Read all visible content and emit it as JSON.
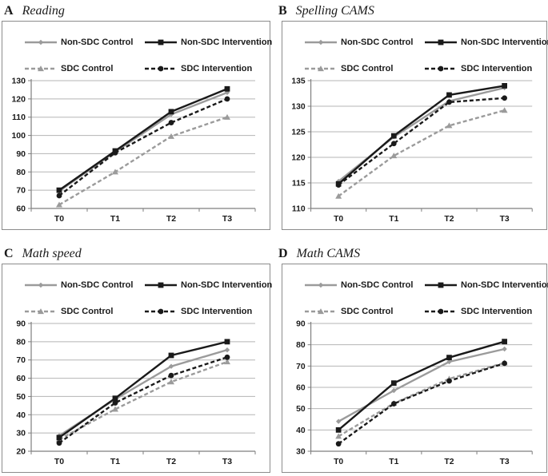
{
  "figure_theme": {
    "background": "#ffffff",
    "panel_border_color": "#8c8c8c",
    "gridline_color": "#b5b5b5",
    "axis_color": "#7f7f7f",
    "text_color": "#1a1a1a",
    "control_gray": "#9b9b9b",
    "intervention_black": "#1a1a1a"
  },
  "chart_data": [
    {
      "type": "line",
      "panel_label": "A",
      "title": "Reading",
      "categories": [
        "T0",
        "T1",
        "T2",
        "T3"
      ],
      "ylim": [
        60,
        130
      ],
      "yticks": [
        60,
        70,
        80,
        90,
        100,
        110,
        120,
        130
      ],
      "legend_position": "top",
      "grid": true,
      "series": [
        {
          "name": "Non-SDC Control",
          "values": [
            69.5,
            91,
            111.5,
            123.5
          ],
          "color": "#9b9b9b",
          "line": "solid",
          "marker": "diamond",
          "zorder": 1
        },
        {
          "name": "Non-SDC Intervention",
          "values": [
            70,
            91.5,
            113,
            125.5
          ],
          "color": "#1a1a1a",
          "line": "solid",
          "marker": "square",
          "zorder": 3
        },
        {
          "name": "SDC Control",
          "values": [
            62,
            80,
            99.5,
            110
          ],
          "color": "#9b9b9b",
          "line": "dashed",
          "marker": "triangle",
          "zorder": 0
        },
        {
          "name": "SDC Intervention",
          "values": [
            67,
            90.5,
            107,
            120
          ],
          "color": "#1a1a1a",
          "line": "dashed",
          "marker": "circle",
          "zorder": 2
        }
      ]
    },
    {
      "type": "line",
      "panel_label": "B",
      "title": "Spelling CAMS",
      "categories": [
        "T0",
        "T1",
        "T2",
        "T3"
      ],
      "ylim": [
        110,
        135
      ],
      "yticks": [
        110,
        115,
        120,
        125,
        130,
        135
      ],
      "legend_position": "top",
      "grid": true,
      "series": [
        {
          "name": "Non-SDC Control",
          "values": [
            115.3,
            124,
            131,
            133.6
          ],
          "color": "#9b9b9b",
          "line": "solid",
          "marker": "diamond",
          "zorder": 1
        },
        {
          "name": "Non-SDC Intervention",
          "values": [
            114.8,
            124.2,
            132.2,
            134
          ],
          "color": "#1a1a1a",
          "line": "solid",
          "marker": "square",
          "zorder": 3
        },
        {
          "name": "SDC Control",
          "values": [
            112.4,
            120.3,
            126.2,
            129.2
          ],
          "color": "#9b9b9b",
          "line": "dashed",
          "marker": "triangle",
          "zorder": 0
        },
        {
          "name": "SDC Intervention",
          "values": [
            114.6,
            122.7,
            130.8,
            131.6
          ],
          "color": "#1a1a1a",
          "line": "dashed",
          "marker": "circle",
          "zorder": 2
        }
      ]
    },
    {
      "type": "line",
      "panel_label": "C",
      "title": "Math speed",
      "categories": [
        "T0",
        "T1",
        "T2",
        "T3"
      ],
      "ylim": [
        20,
        90
      ],
      "yticks": [
        20,
        30,
        40,
        50,
        60,
        70,
        80,
        90
      ],
      "legend_position": "top",
      "grid": true,
      "series": [
        {
          "name": "Non-SDC Control",
          "values": [
            28.5,
            48.5,
            66.5,
            75.5
          ],
          "color": "#9b9b9b",
          "line": "solid",
          "marker": "diamond",
          "zorder": 1
        },
        {
          "name": "Non-SDC Intervention",
          "values": [
            27.5,
            49,
            72.5,
            80
          ],
          "color": "#1a1a1a",
          "line": "solid",
          "marker": "square",
          "zorder": 3
        },
        {
          "name": "SDC Control",
          "values": [
            26.5,
            43,
            58,
            69
          ],
          "color": "#9b9b9b",
          "line": "dashed",
          "marker": "triangle",
          "zorder": 0
        },
        {
          "name": "SDC Intervention",
          "values": [
            24.5,
            46.5,
            61.5,
            71.5
          ],
          "color": "#1a1a1a",
          "line": "dashed",
          "marker": "circle",
          "zorder": 2
        }
      ]
    },
    {
      "type": "line",
      "panel_label": "D",
      "title": "Math CAMS",
      "categories": [
        "T0",
        "T1",
        "T2",
        "T3"
      ],
      "ylim": [
        30,
        90
      ],
      "yticks": [
        30,
        40,
        50,
        60,
        70,
        80,
        90
      ],
      "legend_position": "top",
      "grid": true,
      "series": [
        {
          "name": "Non-SDC Control",
          "values": [
            44,
            58.5,
            72,
            78
          ],
          "color": "#9b9b9b",
          "line": "solid",
          "marker": "diamond",
          "zorder": 1
        },
        {
          "name": "Non-SDC Intervention",
          "values": [
            40,
            62,
            74,
            81.5
          ],
          "color": "#1a1a1a",
          "line": "solid",
          "marker": "square",
          "zorder": 3
        },
        {
          "name": "SDC Control",
          "values": [
            37,
            52.5,
            64,
            71.5
          ],
          "color": "#9b9b9b",
          "line": "dashed",
          "marker": "triangle",
          "zorder": 0
        },
        {
          "name": "SDC Intervention",
          "values": [
            33.5,
            52.3,
            63,
            71.3
          ],
          "color": "#1a1a1a",
          "line": "dashed",
          "marker": "circle",
          "zorder": 2
        }
      ]
    }
  ]
}
